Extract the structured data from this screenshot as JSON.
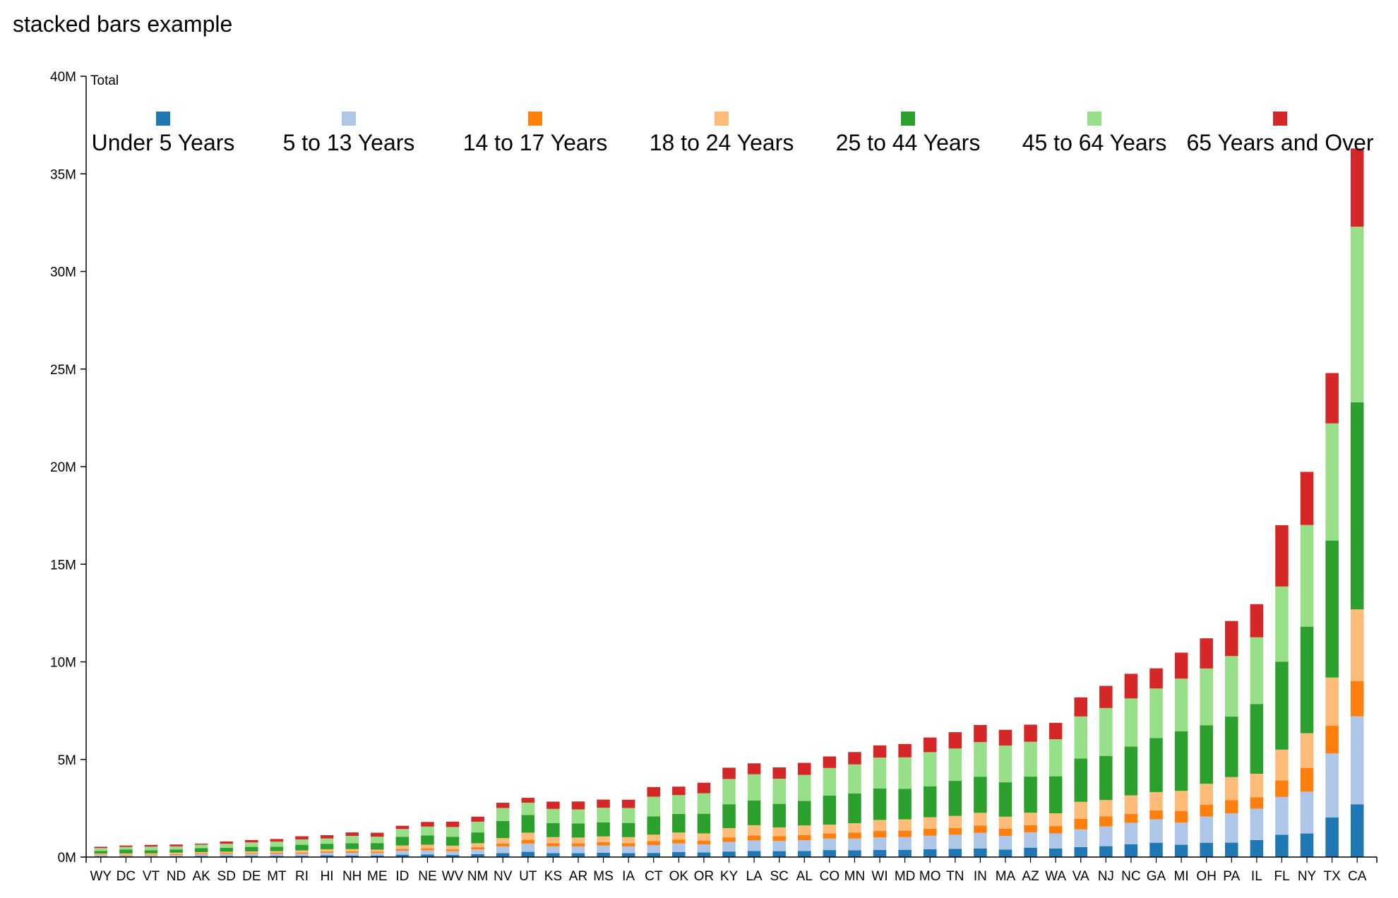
{
  "title": "stacked bars example",
  "chart_data": {
    "type": "bar",
    "stacked": true,
    "ylabel": "Total",
    "ylim": [
      0,
      40000000
    ],
    "yticks": [
      0,
      5000000,
      10000000,
      15000000,
      20000000,
      25000000,
      30000000,
      35000000,
      40000000
    ],
    "ytick_labels": [
      "0M",
      "5M",
      "10M",
      "15M",
      "20M",
      "25M",
      "30M",
      "35M",
      "40M"
    ],
    "legend_position": "top",
    "categories": [
      "WY",
      "DC",
      "VT",
      "ND",
      "AK",
      "SD",
      "DE",
      "MT",
      "RI",
      "HI",
      "NH",
      "ME",
      "ID",
      "NE",
      "WV",
      "NM",
      "NV",
      "UT",
      "KS",
      "AR",
      "MS",
      "IA",
      "CT",
      "OK",
      "OR",
      "KY",
      "LA",
      "SC",
      "AL",
      "CO",
      "MN",
      "WI",
      "MD",
      "MO",
      "TN",
      "IN",
      "MA",
      "AZ",
      "WA",
      "VA",
      "NJ",
      "NC",
      "GA",
      "MI",
      "OH",
      "PA",
      "IL",
      "FL",
      "NY",
      "TX",
      "CA"
    ],
    "series": [
      {
        "name": "Under 5 Years",
        "color": "#1f77b4",
        "values": [
          38253,
          36352,
          32635,
          41996,
          52083,
          58566,
          59319,
          61114,
          60934,
          87207,
          75297,
          71459,
          121746,
          132092,
          105435,
          148323,
          199175,
          268916,
          202529,
          202070,
          220813,
          200562,
          211637,
          259034,
          237556,
          284601,
          310716,
          303024,
          310504,
          358280,
          349499,
          362277,
          371787,
          399450,
          416334,
          443089,
          383568,
          480981,
          433119,
          511846,
          557421,
          650734,
          734136,
          630136,
          733817,
          737462,
          870802,
          1140516,
          1208495,
          2027307,
          2704659
        ]
      },
      {
        "name": "5 to 13 Years",
        "color": "#aec7e8",
        "values": [
          60890,
          50439,
          62538,
          67358,
          85640,
          94438,
          99496,
          106088,
          111408,
          134025,
          144235,
          133656,
          201192,
          215265,
          197167,
          241326,
          345109,
          421438,
          343458,
          343207,
          371502,
          345409,
          403658,
          438926,
          413034,
          493536,
          542341,
          519935,
          552339,
          587154,
          597739,
          640286,
          651923,
          690743,
          725948,
          793512,
          701752,
          787794,
          779143,
          905940,
          1011656,
          1103748,
          1202202,
          1131244,
          1338425,
          1503935,
          1609540,
          1938695,
          2141490,
          3277946,
          4499890
        ]
      },
      {
        "name": "14 to 17 Years",
        "color": "#ff7f0e",
        "values": [
          29314,
          25225,
          33757,
          33794,
          42153,
          45305,
          47414,
          53156,
          56198,
          64011,
          73826,
          69752,
          89702,
          100089,
          91074,
          112801,
          142259,
          187476,
          160011,
          157204,
          174405,
          165883,
          203128,
          199024,
          186906,
          229927,
          254916,
          245812,
          259034,
          261701,
          303364,
          333097,
          328311,
          362282,
          351829,
          375722,
          363813,
          359051,
          376001,
          539193,
          512994,
          457126,
          452768,
          589464,
          611567,
          667679,
          575432,
          843141,
          1220610,
          1420518,
          1811870
        ]
      },
      {
        "name": "18 to 24 Years",
        "color": "#ffbb78",
        "values": [
          53980,
          75569,
          61679,
          82629,
          74257,
          77007,
          84785,
          82960,
          110286,
          115302,
          114113,
          107125,
          179904,
          184408,
          189112,
          206066,
          284709,
          371004,
          314640,
          297210,
          291716,
          308130,
          331536,
          358365,
          375358,
          475202,
          523005,
          450470,
          499212,
          453442,
          483393,
          566401,
          579567,
          585994,
          614437,
          653981,
          617873,
          643727,
          651813,
          872237,
          839866,
          947503,
          940136,
          1039698,
          1070638,
          1188591,
          1212722,
          1578547,
          1774640,
          2471030,
          3670600
        ]
      },
      {
        "name": "25 to 44 Years",
        "color": "#2ca02c",
        "values": [
          132088,
          193557,
          155419,
          154913,
          198948,
          196635,
          230183,
          222213,
          289211,
          282026,
          304813,
          335998,
          445112,
          479346,
          456128,
          552935,
          879129,
          902777,
          722209,
          724594,
          716916,
          728440,
          936541,
          956212,
          1006058,
          1224001,
          1271226,
          1206016,
          1252133,
          1491700,
          1521320,
          1607651,
          1559931,
          1587802,
          1795302,
          1848842,
          1762709,
          1848001,
          1897119,
          2218303,
          2259522,
          2498640,
          2767641,
          3049655,
          3000953,
          3097022,
          3570811,
          4510734,
          5457596,
          7017731,
          10604510
        ]
      },
      {
        "name": "45 to 64 Years",
        "color": "#98df8a",
        "values": [
          147279,
          140043,
          188593,
          166615,
          183159,
          210178,
          230528,
          263542,
          277319,
          270009,
          373811,
          326418,
          398519,
          449839,
          501048,
          550138,
          664108,
          635148,
          723993,
          718125,
          751385,
          766401,
          1006940,
          964216,
          1050401,
          1294138,
          1340122,
          1290451,
          1336921,
          1410710,
          1489573,
          1587361,
          1616384,
          1748300,
          1656401,
          1773614,
          1885342,
          1786498,
          1897198,
          2155690,
          2453896,
          2468813,
          2538754,
          2700613,
          2905193,
          3101193,
          3419214,
          3848138,
          5207680,
          6000610,
          9000880
        ]
      },
      {
        "name": "65 Years and Over",
        "color": "#d62728",
        "values": [
          65614,
          70648,
          86649,
          94276,
          52141,
          116100,
          121688,
          137312,
          160140,
          167856,
          175968,
          201513,
          165997,
          236812,
          273707,
          258000,
          267999,
          248335,
          374495,
          405106,
          417003,
          421707,
          492600,
          432115,
          538730,
          576345,
          557920,
          576465,
          616663,
          591980,
          633642,
          624416,
          682606,
          749453,
          838417,
          876717,
          804401,
          876303,
          843100,
          975900,
          1135928,
          1261200,
          1031136,
          1331102,
          1545585,
          1797826,
          1697813,
          3141812,
          2721740,
          2580421,
          4005840
        ]
      }
    ]
  }
}
